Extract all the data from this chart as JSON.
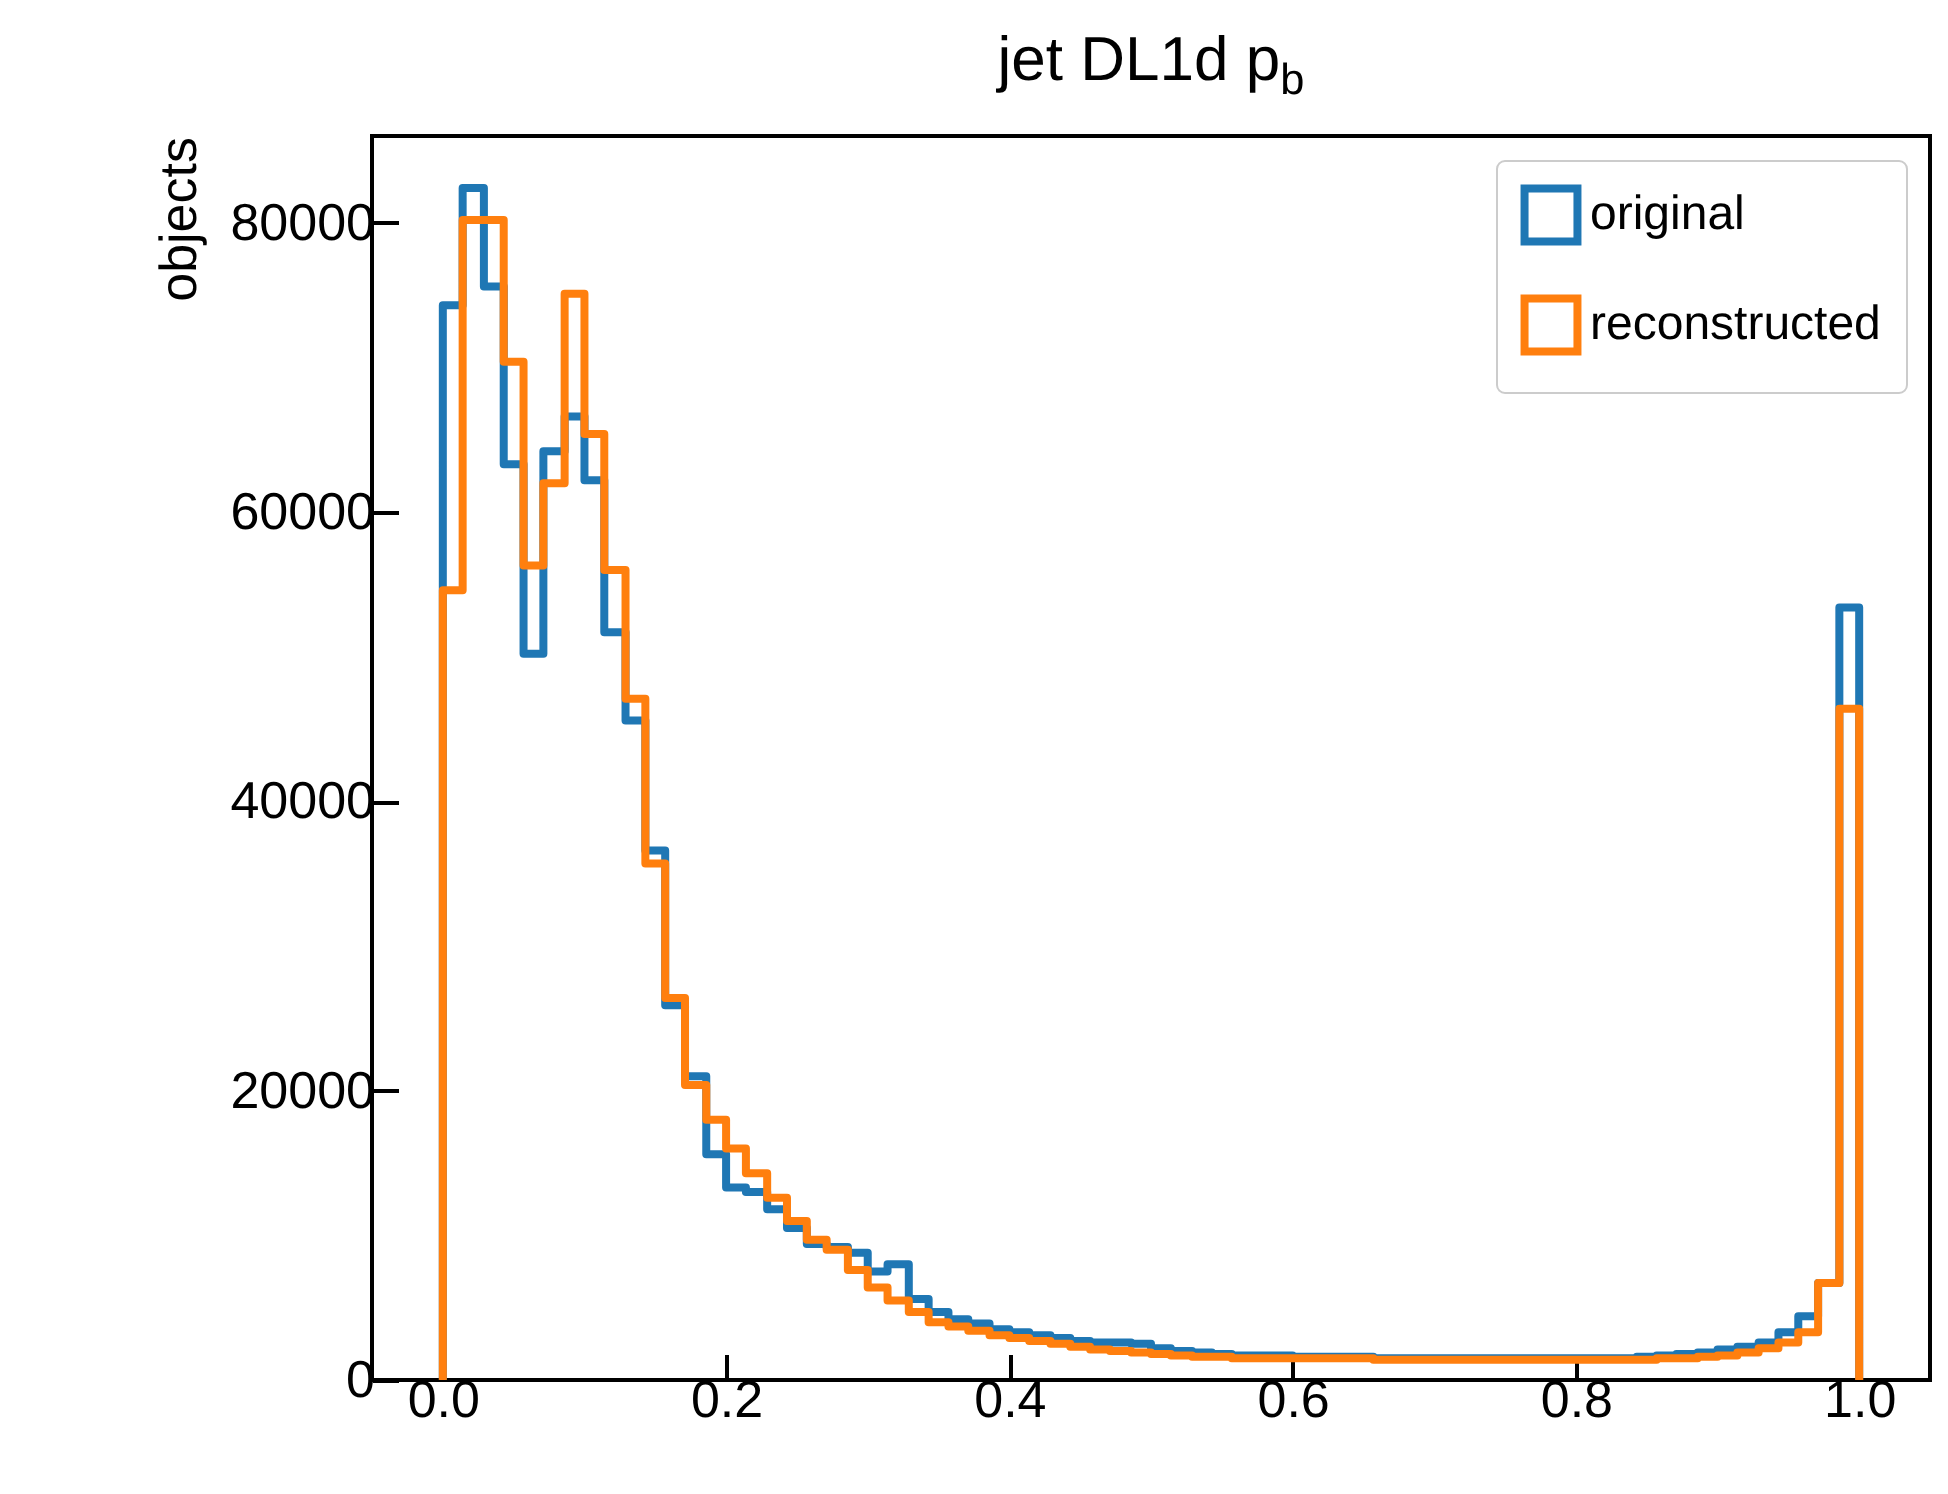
{
  "chart_data": {
    "type": "histogram",
    "title": "jet DL1d p$_{b}$",
    "ylabel": "objects",
    "bins": [
      0,
      0.014,
      0.029,
      0.043,
      0.057,
      0.071,
      0.086,
      0.1,
      0.114,
      0.129,
      0.143,
      0.157,
      0.171,
      0.186,
      0.2,
      0.214,
      0.229,
      0.243,
      0.257,
      0.271,
      0.286,
      0.3,
      0.314,
      0.329,
      0.343,
      0.357,
      0.371,
      0.386,
      0.4,
      0.414,
      0.429,
      0.443,
      0.457,
      0.471,
      0.486,
      0.5,
      0.514,
      0.529,
      0.543,
      0.557,
      0.571,
      0.586,
      0.6,
      0.614,
      0.629,
      0.643,
      0.657,
      0.671,
      0.686,
      0.7,
      0.714,
      0.729,
      0.743,
      0.757,
      0.771,
      0.786,
      0.8,
      0.814,
      0.829,
      0.843,
      0.857,
      0.871,
      0.886,
      0.9,
      0.914,
      0.929,
      0.943,
      0.957,
      0.971,
      0.986,
      1
    ],
    "series": [
      {
        "name": "original",
        "color": "#1f77b4",
        "values": [
          74300,
          82400,
          75600,
          63300,
          50200,
          64200,
          66600,
          62200,
          51700,
          45600,
          36600,
          25900,
          21000,
          15600,
          13300,
          13000,
          11800,
          10500,
          9400,
          9200,
          8800,
          7500,
          8000,
          5600,
          4700,
          4200,
          3900,
          3500,
          3300,
          3100,
          2900,
          2700,
          2600,
          2600,
          2500,
          2200,
          2000,
          1900,
          1800,
          1700,
          1700,
          1700,
          1600,
          1600,
          1600,
          1600,
          1500,
          1500,
          1500,
          1500,
          1500,
          1500,
          1500,
          1500,
          1500,
          1500,
          1500,
          1500,
          1500,
          1600,
          1700,
          1800,
          1900,
          2100,
          2300,
          2600,
          3300,
          4400,
          6700,
          53400
        ]
      },
      {
        "name": "reconstructed",
        "color": "#ff7f0e",
        "values": [
          54600,
          80200,
          80200,
          70400,
          56300,
          62000,
          75100,
          65400,
          56000,
          47100,
          35700,
          26400,
          20400,
          18000,
          16000,
          14300,
          12600,
          11000,
          9700,
          9000,
          7600,
          6400,
          5500,
          4700,
          4000,
          3700,
          3400,
          3100,
          2900,
          2700,
          2500,
          2300,
          2100,
          2000,
          1900,
          1800,
          1700,
          1600,
          1600,
          1500,
          1500,
          1500,
          1500,
          1500,
          1500,
          1500,
          1400,
          1400,
          1400,
          1400,
          1400,
          1400,
          1400,
          1400,
          1400,
          1400,
          1400,
          1400,
          1400,
          1400,
          1500,
          1500,
          1600,
          1700,
          1900,
          2200,
          2600,
          3300,
          6700,
          46400
        ]
      }
    ],
    "xlim": [
      -0.05,
      1.05
    ],
    "xticks": [
      {
        "value": 0,
        "label": "0.0"
      },
      {
        "value": 0.2,
        "label": "0.2"
      },
      {
        "value": 0.4,
        "label": "0.4"
      },
      {
        "value": 0.6,
        "label": "0.6"
      },
      {
        "value": 0.8,
        "label": "0.8"
      },
      {
        "value": 1,
        "label": "1.0"
      }
    ],
    "ylim": [
      0,
      86000
    ],
    "yticks": [
      0,
      20000,
      40000,
      60000,
      80000
    ],
    "legend": "top right"
  }
}
